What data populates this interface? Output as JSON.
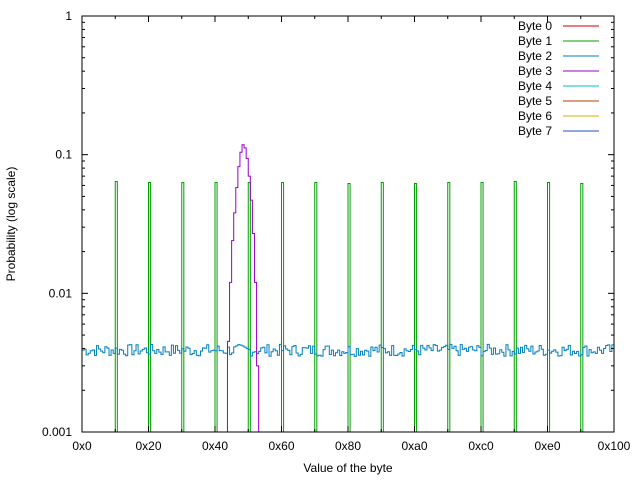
{
  "chart_data": {
    "type": "line",
    "xlabel": "Value of the byte",
    "ylabel": "Probability (log scale)",
    "yscale": "log",
    "xlim": [
      0,
      256
    ],
    "ylim": [
      0.001,
      1
    ],
    "grid": false,
    "legend_position": "top-right",
    "x_ticks": [
      {
        "value": 0,
        "label": "0x0"
      },
      {
        "value": 32,
        "label": "0x20"
      },
      {
        "value": 64,
        "label": "0x40"
      },
      {
        "value": 96,
        "label": "0x60"
      },
      {
        "value": 128,
        "label": "0x80"
      },
      {
        "value": 160,
        "label": "0xa0"
      },
      {
        "value": 192,
        "label": "0xc0"
      },
      {
        "value": 224,
        "label": "0xe0"
      },
      {
        "value": 256,
        "label": "0x100"
      }
    ],
    "y_ticks": [
      {
        "value": 1,
        "label": "1"
      },
      {
        "value": 0.1,
        "label": "0.1"
      },
      {
        "value": 0.01,
        "label": "0.01"
      },
      {
        "value": 0.001,
        "label": "0.001"
      }
    ],
    "series": [
      {
        "name": "Byte 0",
        "color": "#cc0000",
        "kind": "none"
      },
      {
        "name": "Byte 1",
        "color": "#00a000",
        "kind": "spikes",
        "points": [
          [
            16,
            0.064
          ],
          [
            32,
            0.063
          ],
          [
            48,
            0.063
          ],
          [
            64,
            0.063
          ],
          [
            80,
            0.063
          ],
          [
            96,
            0.063
          ],
          [
            112,
            0.063
          ],
          [
            128,
            0.062
          ],
          [
            144,
            0.063
          ],
          [
            160,
            0.062
          ],
          [
            176,
            0.063
          ],
          [
            192,
            0.063
          ],
          [
            208,
            0.064
          ],
          [
            224,
            0.063
          ],
          [
            240,
            0.062
          ]
        ]
      },
      {
        "name": "Byte 2",
        "color": "#0080c0",
        "kind": "flat_noise",
        "level": 0.0039
      },
      {
        "name": "Byte 3",
        "color": "#9900cc",
        "kind": "bell",
        "points": [
          [
            70,
            0.0045
          ],
          [
            71,
            0.012
          ],
          [
            72,
            0.024
          ],
          [
            73,
            0.038
          ],
          [
            74,
            0.058
          ],
          [
            75,
            0.082
          ],
          [
            76,
            0.104
          ],
          [
            77,
            0.118
          ],
          [
            78,
            0.112
          ],
          [
            79,
            0.094
          ],
          [
            80,
            0.07
          ],
          [
            81,
            0.047
          ],
          [
            82,
            0.027
          ],
          [
            83,
            0.012
          ],
          [
            84,
            0.003
          ]
        ]
      },
      {
        "name": "Byte 4",
        "color": "#00c0c0",
        "kind": "none"
      },
      {
        "name": "Byte 5",
        "color": "#b83c00",
        "kind": "none"
      },
      {
        "name": "Byte 6",
        "color": "#c8b400",
        "kind": "none"
      },
      {
        "name": "Byte 7",
        "color": "#2050c0",
        "kind": "none"
      }
    ]
  }
}
